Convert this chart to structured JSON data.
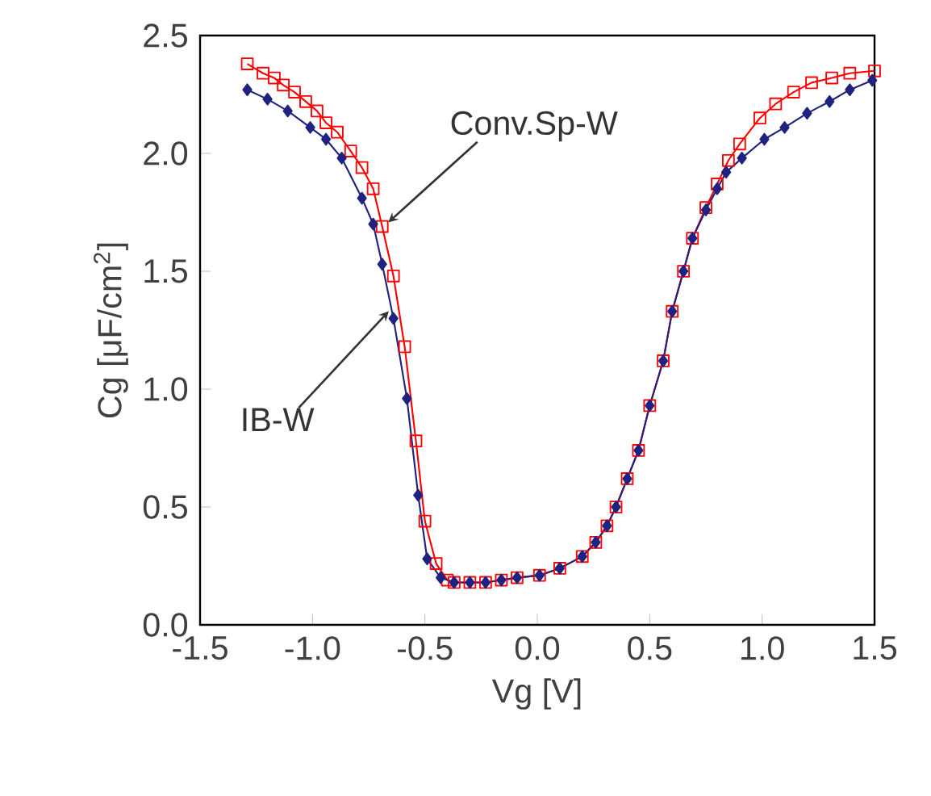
{
  "chart_data": {
    "type": "line",
    "xlabel": "Vg [V]",
    "ylabel": "Cg [μF/cm$^{2}$]",
    "xlim": [
      -1.5,
      1.5
    ],
    "ylim": [
      0,
      2.5
    ],
    "xticks": [
      {
        "value": -1.5,
        "label": "-1.5"
      },
      {
        "value": -1.0,
        "label": "-1.0"
      },
      {
        "value": -0.5,
        "label": "-0.5"
      },
      {
        "value": 0,
        "label": "0.0"
      },
      {
        "value": 0.5,
        "label": "0.5"
      },
      {
        "value": 1.0,
        "label": "1.0"
      },
      {
        "value": 1.5,
        "label": "1.5"
      }
    ],
    "yticks": [
      {
        "value": 0,
        "label": "0.0"
      },
      {
        "value": 0.5,
        "label": "0.5"
      },
      {
        "value": 1.0,
        "label": "1.0"
      },
      {
        "value": 1.5,
        "label": "1.5"
      },
      {
        "value": 2.0,
        "label": "2.0"
      },
      {
        "value": 2.5,
        "label": "2.5"
      }
    ],
    "grid": false,
    "series": [
      {
        "color": "#ff0000",
        "marker": "square",
        "x": [
          -1.29,
          -1.22,
          -1.17,
          -1.13,
          -1.08,
          -1.03,
          -0.98,
          -0.94,
          -0.89,
          -0.83,
          -0.78,
          -0.73,
          -0.69,
          -0.64,
          -0.59,
          -0.54,
          -0.5,
          -0.45,
          -0.4,
          -0.37,
          -0.3,
          -0.23,
          -0.16,
          -0.09,
          0.01,
          0.1,
          0.2,
          0.26,
          0.31,
          0.35,
          0.4,
          0.45,
          0.5,
          0.56,
          0.6,
          0.65,
          0.69,
          0.75,
          0.8,
          0.85,
          0.9,
          0.99,
          1.06,
          1.14,
          1.22,
          1.31,
          1.39,
          1.5
        ],
        "values": [
          2.38,
          2.34,
          2.32,
          2.29,
          2.26,
          2.22,
          2.18,
          2.13,
          2.09,
          2.01,
          1.94,
          1.85,
          1.69,
          1.48,
          1.18,
          0.78,
          0.44,
          0.26,
          0.19,
          0.18,
          0.18,
          0.18,
          0.19,
          0.2,
          0.21,
          0.24,
          0.29,
          0.35,
          0.42,
          0.5,
          0.62,
          0.74,
          0.93,
          1.12,
          1.33,
          1.5,
          1.64,
          1.77,
          1.87,
          1.97,
          2.04,
          2.15,
          2.21,
          2.26,
          2.3,
          2.32,
          2.34,
          2.35
        ]
      },
      {
        "color": "#1f237f",
        "marker": "diamond",
        "x": [
          -1.29,
          -1.2,
          -1.11,
          -1.01,
          -0.94,
          -0.87,
          -0.78,
          -0.73,
          -0.69,
          -0.64,
          -0.58,
          -0.53,
          -0.49,
          -0.43,
          -0.37,
          -0.3,
          -0.23,
          -0.16,
          -0.09,
          0.01,
          0.1,
          0.2,
          0.26,
          0.31,
          0.35,
          0.4,
          0.45,
          0.5,
          0.56,
          0.6,
          0.65,
          0.69,
          0.75,
          0.8,
          0.84,
          0.91,
          1.01,
          1.1,
          1.2,
          1.3,
          1.39,
          1.49
        ],
        "values": [
          2.27,
          2.23,
          2.18,
          2.11,
          2.06,
          1.98,
          1.81,
          1.7,
          1.53,
          1.3,
          0.96,
          0.55,
          0.28,
          0.2,
          0.18,
          0.18,
          0.18,
          0.19,
          0.2,
          0.21,
          0.24,
          0.29,
          0.35,
          0.42,
          0.5,
          0.62,
          0.74,
          0.93,
          1.12,
          1.33,
          1.5,
          1.64,
          1.76,
          1.85,
          1.92,
          1.98,
          2.06,
          2.11,
          2.17,
          2.22,
          2.27,
          2.31
        ]
      }
    ],
    "annotations": [
      {
        "text": "Conv.Sp-W",
        "x": -0.69,
        "y": 1.69
      },
      {
        "text": "IB-W",
        "x": -0.64,
        "y": 1.35
      }
    ]
  }
}
